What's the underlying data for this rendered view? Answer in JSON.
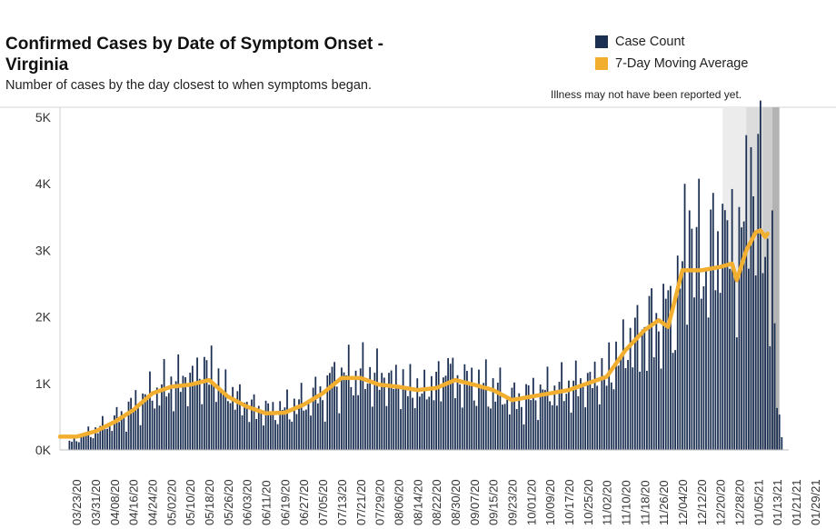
{
  "chart_data": {
    "type": "bar",
    "title": "Confirmed Cases by Date of Symptom Onset - Virginia",
    "subtitle": "Number of cases by the day closest to when symptoms began.",
    "note": "Illness may not have been reported yet.",
    "legend": {
      "placement": "top-right",
      "entries": [
        {
          "label": "Case Count",
          "color": "#1b2f52"
        },
        {
          "label": "7-Day Moving Average",
          "color": "#f2ae2e"
        }
      ]
    },
    "y_axis": {
      "ticks": [
        "0K",
        "1K",
        "2K",
        "3K",
        "4K",
        "5K"
      ],
      "tick_values": [
        0,
        1000,
        2000,
        3000,
        4000,
        5000
      ],
      "ylim": [
        0,
        5000
      ]
    },
    "x_axis": {
      "range": [
        "2020-03-16",
        "2021-01-31"
      ],
      "ticks": [
        "03/23/20",
        "03/31/20",
        "04/08/20",
        "04/16/20",
        "04/24/20",
        "05/02/20",
        "05/10/20",
        "05/18/20",
        "05/26/20",
        "06/03/20",
        "06/11/20",
        "06/19/20",
        "06/27/20",
        "07/05/20",
        "07/13/20",
        "07/21/20",
        "07/29/20",
        "08/06/20",
        "08/14/20",
        "08/22/20",
        "08/30/20",
        "09/07/20",
        "09/15/20",
        "09/23/20",
        "10/01/20",
        "10/09/20",
        "10/17/20",
        "10/25/20",
        "11/02/20",
        "11/10/20",
        "11/18/20",
        "11/26/20",
        "12/04/20",
        "12/12/20",
        "12/20/20",
        "12/28/20",
        "01/05/21",
        "01/13/21",
        "01/21/21",
        "01/29/21"
      ]
    },
    "shaded_periods": [
      {
        "start": "2020-12-21",
        "end": "2020-12-31",
        "shade": "#ececec"
      },
      {
        "start": "2020-12-31",
        "end": "2021-01-07",
        "shade": "#dcdcdc"
      },
      {
        "start": "2021-01-07",
        "end": "2021-01-11",
        "shade": "#cdcdcd"
      },
      {
        "start": "2021-01-11",
        "end": "2021-01-14",
        "shade": "#b3b3b3"
      }
    ],
    "series": [
      {
        "name": "Case Count",
        "style": "bar",
        "color": "#1b2f52",
        "points": [
          [
            "2020-03-20",
            120
          ],
          [
            "2020-03-31",
            300
          ],
          [
            "2020-04-10",
            500
          ],
          [
            "2020-04-20",
            800
          ],
          [
            "2020-05-01",
            1000
          ],
          [
            "2020-05-18",
            1200
          ],
          [
            "2020-05-26",
            900
          ],
          [
            "2020-06-05",
            650
          ],
          [
            "2020-06-15",
            600
          ],
          [
            "2020-06-25",
            700
          ],
          [
            "2020-07-06",
            900
          ],
          [
            "2020-07-13",
            1150
          ],
          [
            "2020-07-25",
            1150
          ],
          [
            "2020-08-05",
            1050
          ],
          [
            "2020-08-15",
            900
          ],
          [
            "2020-08-25",
            1100
          ],
          [
            "2020-09-05",
            1050
          ],
          [
            "2020-09-15",
            950
          ],
          [
            "2020-09-25",
            750
          ],
          [
            "2020-10-05",
            900
          ],
          [
            "2020-10-15",
            950
          ],
          [
            "2020-10-25",
            1050
          ],
          [
            "2020-11-02",
            1150
          ],
          [
            "2020-11-10",
            1600
          ],
          [
            "2020-11-20",
            1900
          ],
          [
            "2020-11-30",
            2100
          ],
          [
            "2020-12-05",
            2900
          ],
          [
            "2020-12-15",
            3000
          ],
          [
            "2020-12-22",
            2900
          ],
          [
            "2020-12-28",
            3300
          ],
          [
            "2021-01-02",
            3600
          ],
          [
            "2021-01-06",
            3800
          ],
          [
            "2021-01-10",
            2700
          ],
          [
            "2021-01-13",
            800
          ],
          [
            "2021-01-15",
            200
          ]
        ],
        "peaks": [
          [
            "2020-05-17",
            1350
          ],
          [
            "2020-07-09",
            1250
          ],
          [
            "2020-08-27",
            1380
          ],
          [
            "2020-11-28",
            2400
          ],
          [
            "2020-12-07",
            3600
          ],
          [
            "2020-12-21",
            3700
          ],
          [
            "2021-01-02",
            4550
          ],
          [
            "2021-01-05",
            4750
          ],
          [
            "2021-01-11",
            3600
          ]
        ]
      },
      {
        "name": "7-Day Moving Average",
        "style": "line",
        "color": "#f2ae2e",
        "points": [
          [
            "2020-03-16",
            200
          ],
          [
            "2020-03-23",
            200
          ],
          [
            "2020-03-31",
            280
          ],
          [
            "2020-04-08",
            420
          ],
          [
            "2020-04-16",
            600
          ],
          [
            "2020-04-24",
            850
          ],
          [
            "2020-05-02",
            950
          ],
          [
            "2020-05-10",
            980
          ],
          [
            "2020-05-18",
            1050
          ],
          [
            "2020-05-26",
            800
          ],
          [
            "2020-06-03",
            650
          ],
          [
            "2020-06-11",
            550
          ],
          [
            "2020-06-19",
            560
          ],
          [
            "2020-06-27",
            680
          ],
          [
            "2020-07-05",
            850
          ],
          [
            "2020-07-13",
            1080
          ],
          [
            "2020-07-21",
            1080
          ],
          [
            "2020-07-29",
            980
          ],
          [
            "2020-08-06",
            950
          ],
          [
            "2020-08-14",
            900
          ],
          [
            "2020-08-22",
            930
          ],
          [
            "2020-08-30",
            1050
          ],
          [
            "2020-09-07",
            980
          ],
          [
            "2020-09-15",
            900
          ],
          [
            "2020-09-23",
            750
          ],
          [
            "2020-10-01",
            800
          ],
          [
            "2020-10-09",
            850
          ],
          [
            "2020-10-17",
            900
          ],
          [
            "2020-10-25",
            1000
          ],
          [
            "2020-11-02",
            1100
          ],
          [
            "2020-11-10",
            1500
          ],
          [
            "2020-11-18",
            1800
          ],
          [
            "2020-11-24",
            1950
          ],
          [
            "2020-11-28",
            1850
          ],
          [
            "2020-12-04",
            2700
          ],
          [
            "2020-12-12",
            2700
          ],
          [
            "2020-12-20",
            2750
          ],
          [
            "2020-12-25",
            2800
          ],
          [
            "2020-12-27",
            2550
          ],
          [
            "2020-12-31",
            3000
          ],
          [
            "2021-01-04",
            3270
          ],
          [
            "2021-01-06",
            3300
          ],
          [
            "2021-01-08",
            3200
          ],
          [
            "2021-01-09",
            3250
          ]
        ]
      }
    ]
  }
}
